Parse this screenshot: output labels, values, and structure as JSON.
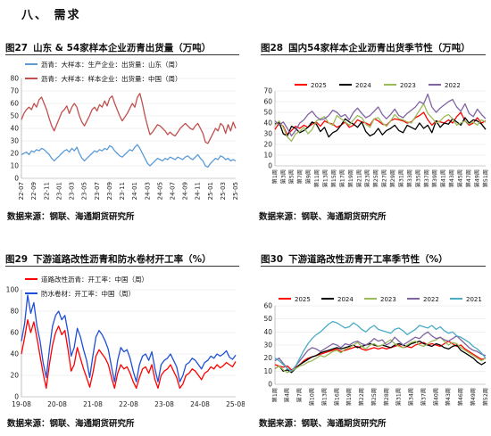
{
  "section": {
    "title": "八、  需求"
  },
  "charts": [
    {
      "num": "图27",
      "title": "山东 & 54家样本企业沥青出货量（万吨）",
      "source": "数据来源：钢联、海通期货研究所"
    },
    {
      "num": "图28",
      "title": "国内54家样本企业沥青出货季节性（万吨）",
      "source": "数据来源：钢联、海通期货研究所"
    },
    {
      "num": "图29",
      "title": "下游道路改性沥青和防水卷材开工率（%）",
      "source": "数据来源：钢联、海通期货研究所"
    },
    {
      "num": "图30",
      "title": "下游道路改性沥青开工率季节性（%）",
      "source": "数据来源：钢联、海通期货研究所"
    }
  ],
  "chart_data": [
    {
      "type": "line",
      "ylim": [
        0,
        80
      ],
      "yticks": [
        0,
        10,
        20,
        30,
        40,
        50,
        60,
        70,
        80
      ],
      "xticklabels": [
        "22-07",
        "22-09",
        "22-11",
        "23-01",
        "23-03",
        "23-05",
        "23-07",
        "23-09",
        "23-11",
        "24-01",
        "24-03",
        "24-05",
        "24-07",
        "24-09",
        "24-11",
        "25-01",
        "25-03",
        "25-05"
      ],
      "legend": [
        "沥青：大样本：生产企业：出货量：山东（周）",
        "沥青：大样本：样本企业：出货量：中国（周）"
      ],
      "series": [
        {
          "name": "沥青：大样本：生产企业：出货量：山东（周）",
          "color": "#5b9bd5",
          "values": [
            19,
            20,
            21,
            19,
            22,
            21,
            23,
            22,
            24,
            23,
            21,
            19,
            16,
            14,
            16,
            18,
            20,
            22,
            23,
            21,
            24,
            22,
            25,
            20,
            16,
            14,
            16,
            18,
            20,
            22,
            21,
            23,
            22,
            24,
            23,
            26,
            25,
            22,
            20,
            18,
            17,
            19,
            21,
            23,
            22,
            25,
            27,
            24,
            20,
            16,
            12,
            10,
            12,
            14,
            16,
            15,
            14,
            16,
            15,
            17,
            16,
            15,
            17,
            16,
            15,
            17,
            18,
            16,
            15,
            17,
            19,
            16,
            14,
            10,
            9,
            12,
            14,
            16,
            15,
            18,
            17,
            15,
            16,
            14,
            15,
            14
          ]
        },
        {
          "name": "沥青：大样本：样本企业：出货量：中国（周）",
          "color": "#c0504d",
          "values": [
            47,
            52,
            55,
            57,
            55,
            60,
            57,
            63,
            65,
            60,
            55,
            48,
            42,
            38,
            43,
            48,
            53,
            55,
            58,
            52,
            57,
            60,
            57,
            50,
            45,
            42,
            46,
            50,
            55,
            57,
            54,
            59,
            57,
            62,
            58,
            64,
            66,
            60,
            55,
            50,
            46,
            49,
            52,
            56,
            60,
            57,
            65,
            68,
            60,
            50,
            42,
            35,
            37,
            40,
            43,
            42,
            40,
            38,
            35,
            37,
            35,
            34,
            37,
            40,
            42,
            44,
            42,
            40,
            39,
            42,
            44,
            40,
            36,
            29,
            28,
            32,
            36,
            40,
            38,
            44,
            42,
            36,
            43,
            38,
            45,
            40
          ]
        }
      ]
    },
    {
      "type": "line",
      "ylim": [
        0,
        70
      ],
      "yticks": [
        0,
        10,
        20,
        30,
        40,
        50,
        60,
        70
      ],
      "xticklabels": [
        "第1周",
        "第3周",
        "第5周",
        "第7周",
        "第9周",
        "第11周",
        "第13周",
        "第15周",
        "第17周",
        "第19周",
        "第21周",
        "第23周",
        "第25周",
        "第27周",
        "第29周",
        "第31周",
        "第33周",
        "第35周",
        "第37周",
        "第39周",
        "第41周",
        "第43周",
        "第45周",
        "第47周",
        "第49周",
        "第51周"
      ],
      "legend": [
        "2025",
        "2024",
        "2023",
        "2022"
      ],
      "series": [
        {
          "name": "2025",
          "color": "#ff0000",
          "values": [
            34,
            40,
            37,
            29,
            33,
            37,
            35,
            38,
            36,
            39,
            41,
            37,
            42,
            40,
            39,
            36,
            38,
            41,
            36,
            38,
            43,
            41,
            40,
            38,
            44,
            42,
            39,
            38,
            42,
            44,
            43,
            42,
            40,
            41,
            45,
            47,
            50,
            43,
            38,
            42,
            41,
            40,
            43,
            40,
            46,
            50,
            42,
            38,
            40,
            45,
            40,
            42
          ]
        },
        {
          "name": "2024",
          "color": "#000000",
          "values": [
            39,
            41,
            30,
            28,
            37,
            35,
            31,
            33,
            36,
            41,
            39,
            32,
            36,
            27,
            31,
            33,
            38,
            44,
            41,
            39,
            36,
            41,
            32,
            28,
            30,
            35,
            29,
            33,
            35,
            38,
            33,
            31,
            38,
            36,
            34,
            40,
            35,
            38,
            31,
            42,
            36,
            40,
            39,
            44,
            41,
            38,
            45,
            40,
            43,
            42,
            39,
            34
          ]
        },
        {
          "name": "2023",
          "color": "#9bbb59",
          "values": [
            38,
            42,
            36,
            27,
            23,
            30,
            32,
            36,
            30,
            34,
            42,
            44,
            46,
            40,
            38,
            47,
            44,
            41,
            38,
            43,
            47,
            45,
            39,
            36,
            44,
            45,
            40,
            37,
            42,
            48,
            44,
            43,
            41,
            40,
            46,
            52,
            58,
            49,
            45,
            40,
            42,
            46,
            48,
            44,
            38,
            40,
            42,
            39,
            41,
            38,
            43,
            41
          ]
        },
        {
          "name": "2022",
          "color": "#8064a2",
          "values": [
            42,
            38,
            41,
            35,
            28,
            33,
            40,
            43,
            48,
            51,
            46,
            43,
            44,
            47,
            52,
            50,
            46,
            48,
            43,
            50,
            54,
            49,
            45,
            47,
            51,
            55,
            48,
            44,
            48,
            53,
            47,
            45,
            49,
            52,
            55,
            60,
            58,
            67,
            55,
            50,
            54,
            57,
            60,
            62,
            55,
            51,
            58,
            49,
            46,
            53,
            48,
            44
          ]
        }
      ]
    },
    {
      "type": "line",
      "ylim": [
        0,
        100
      ],
      "yticks": [
        0,
        20,
        40,
        60,
        80,
        100
      ],
      "xticklabels": [
        "19-08",
        "20-08",
        "21-08",
        "22-08",
        "23-08",
        "24-08",
        "25-08"
      ],
      "legend": [
        "道路改性沥青：开工率：中国（周）",
        "防水卷材：开工率：中国（周）"
      ],
      "series": [
        {
          "name": "道路改性沥青：开工率：中国（周）",
          "color": "#ff0000",
          "values": [
            40,
            55,
            72,
            60,
            70,
            55,
            38,
            22,
            8,
            30,
            48,
            60,
            66,
            58,
            62,
            44,
            24,
            30,
            46,
            36,
            26,
            18,
            9,
            22,
            38,
            44,
            40,
            36,
            30,
            18,
            8,
            22,
            30,
            26,
            28,
            22,
            14,
            8,
            18,
            26,
            28,
            22,
            30,
            16,
            8,
            20,
            24,
            26,
            30,
            24,
            18,
            8,
            12,
            20,
            22,
            26,
            24,
            20,
            16,
            22,
            24,
            28,
            26,
            30,
            27,
            29,
            32,
            30,
            28,
            33
          ]
        },
        {
          "name": "防水卷材：开工率：中国（周）",
          "color": "#1f4fd6",
          "values": [
            52,
            68,
            95,
            78,
            88,
            66,
            52,
            32,
            18,
            44,
            66,
            76,
            80,
            72,
            76,
            60,
            38,
            46,
            64,
            56,
            44,
            34,
            18,
            38,
            56,
            62,
            58,
            52,
            44,
            28,
            14,
            34,
            46,
            42,
            44,
            36,
            24,
            14,
            30,
            38,
            40,
            34,
            42,
            26,
            14,
            30,
            34,
            36,
            40,
            34,
            28,
            14,
            20,
            30,
            32,
            36,
            34,
            30,
            26,
            32,
            34,
            38,
            36,
            40,
            38,
            40,
            43,
            37,
            35,
            39
          ]
        }
      ]
    },
    {
      "type": "line",
      "ylim": [
        0,
        60
      ],
      "yticks": [
        0,
        10,
        20,
        30,
        40,
        50,
        60
      ],
      "xticklabels": [
        "第1周",
        "第4周",
        "第7周",
        "第10周",
        "第13周",
        "第16周",
        "第19周",
        "第22周",
        "第25周",
        "第28周",
        "第31周",
        "第34周",
        "第37周",
        "第40周",
        "第43周",
        "第46周",
        "第49周",
        "第52周"
      ],
      "legend": [
        "2025",
        "2024",
        "2023",
        "2022",
        "2021"
      ],
      "series": [
        {
          "name": "2025",
          "color": "#ff0000",
          "values": [
            15,
            14,
            13,
            14,
            11,
            13,
            15,
            18,
            20,
            21,
            22,
            23,
            24,
            25,
            26,
            27,
            25,
            26,
            27,
            28,
            29,
            27,
            26,
            27,
            28,
            27,
            28,
            27,
            28,
            29,
            30,
            28,
            29,
            28,
            30,
            31,
            32,
            30,
            31,
            30,
            29,
            31,
            33,
            31,
            29,
            30,
            27,
            25,
            23,
            21,
            19,
            20
          ]
        },
        {
          "name": "2024",
          "color": "#000000",
          "values": [
            12,
            14,
            10,
            11,
            9,
            12,
            15,
            17,
            19,
            21,
            22,
            24,
            25,
            26,
            27,
            28,
            27,
            28,
            29,
            30,
            28,
            29,
            30,
            31,
            30,
            29,
            30,
            29,
            28,
            30,
            31,
            30,
            29,
            31,
            32,
            33,
            31,
            30,
            29,
            31,
            30,
            28,
            27,
            29,
            30,
            26,
            24,
            22,
            20,
            17,
            15,
            17
          ]
        },
        {
          "name": "2023",
          "color": "#9bbb59",
          "values": [
            12,
            14,
            11,
            9,
            10,
            12,
            14,
            15,
            17,
            18,
            20,
            22,
            21,
            23,
            25,
            26,
            24,
            27,
            28,
            30,
            32,
            29,
            27,
            30,
            31,
            29,
            30,
            32,
            34,
            31,
            29,
            28,
            30,
            32,
            33,
            30,
            29,
            31,
            33,
            34,
            36,
            33,
            30,
            32,
            31,
            28,
            26,
            24,
            22,
            20,
            18,
            20
          ]
        },
        {
          "name": "2022",
          "color": "#8064a2",
          "values": [
            18,
            20,
            16,
            12,
            10,
            14,
            18,
            22,
            26,
            28,
            27,
            25,
            27,
            29,
            31,
            30,
            28,
            31,
            30,
            32,
            33,
            31,
            30,
            32,
            35,
            33,
            34,
            30,
            32,
            36,
            33,
            30,
            32,
            34,
            36,
            35,
            38,
            40,
            37,
            35,
            36,
            34,
            33,
            35,
            37,
            34,
            31,
            28,
            26,
            25,
            23,
            22
          ]
        },
        {
          "name": "2021",
          "color": "#4bacc6",
          "values": [
            20,
            18,
            15,
            12,
            10,
            14,
            20,
            26,
            31,
            35,
            38,
            40,
            43,
            46,
            48,
            47,
            45,
            43,
            44,
            47,
            45,
            42,
            40,
            43,
            45,
            42,
            41,
            40,
            39,
            42,
            43,
            41,
            38,
            40,
            42,
            45,
            44,
            43,
            45,
            42,
            44,
            41,
            39,
            40,
            37,
            36,
            34,
            32,
            29,
            27,
            24,
            20
          ]
        }
      ]
    }
  ]
}
